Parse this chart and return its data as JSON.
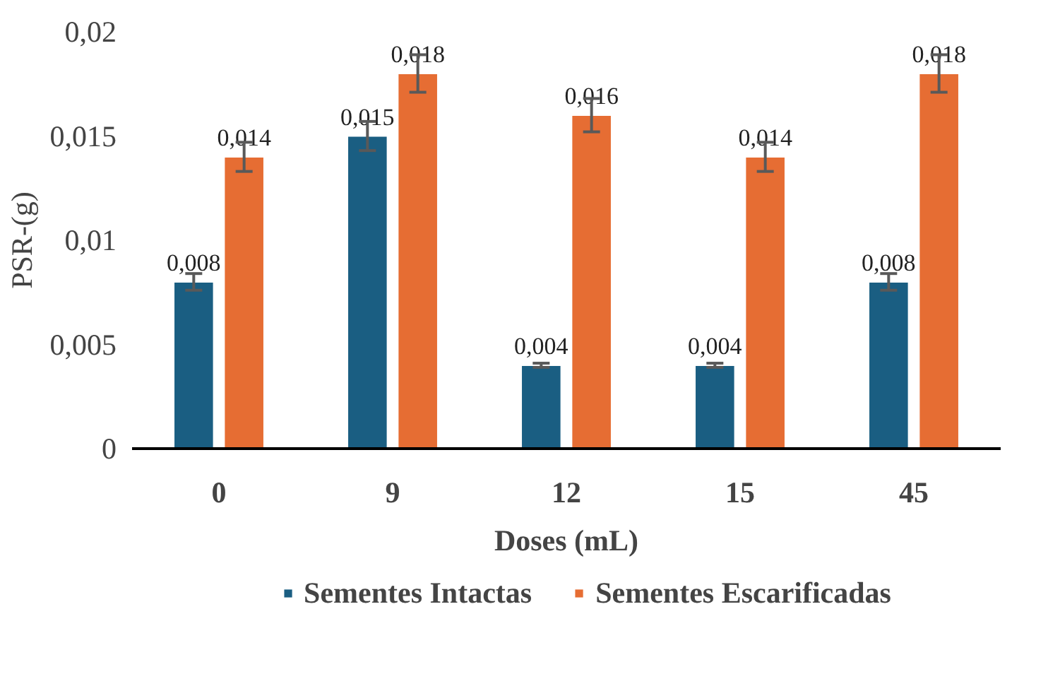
{
  "chart_data": {
    "type": "bar",
    "xlabel": "Doses (mL)",
    "ylabel": "PSR-(g)",
    "categories": [
      "0",
      "9",
      "12",
      "15",
      "45"
    ],
    "series": [
      {
        "name": "Sementes Intactas",
        "color": "#1a5e82",
        "values": [
          0.008,
          0.015,
          0.004,
          0.004,
          0.008
        ],
        "errors": [
          0.0004,
          0.0007,
          0.0001,
          0.0001,
          0.0004
        ],
        "value_labels": [
          "0,008",
          "0,015",
          "0,004",
          "0,004",
          "0,008"
        ]
      },
      {
        "name": "Sementes Escarificadas",
        "color": "#e66d33",
        "values": [
          0.014,
          0.018,
          0.016,
          0.014,
          0.018
        ],
        "errors": [
          0.0007,
          0.0009,
          0.0008,
          0.0007,
          0.0009
        ],
        "value_labels": [
          "0,014",
          "0,018",
          "0,016",
          "0,014",
          "0,018"
        ]
      }
    ],
    "ylim": [
      0,
      0.02
    ],
    "yticks": [
      {
        "value": 0,
        "label": "0"
      },
      {
        "value": 0.005,
        "label": "0,005"
      },
      {
        "value": 0.01,
        "label": "0,01"
      },
      {
        "value": 0.015,
        "label": "0,015"
      },
      {
        "value": 0.02,
        "label": "0,02"
      }
    ],
    "grid": false,
    "legend": "bottom"
  }
}
